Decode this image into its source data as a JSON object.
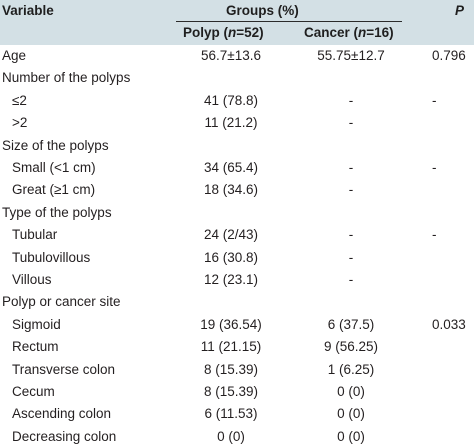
{
  "header": {
    "variable": "Variable",
    "groups": "Groups (%)",
    "polyp_prefix": "Polyp (",
    "polyp_n": "n",
    "polyp_suffix": "=52)",
    "cancer_prefix": "Cancer (",
    "cancer_n": "n",
    "cancer_suffix": "=16)",
    "p": "P"
  },
  "rows": [
    {
      "label": "Age",
      "indent": false,
      "polyp": "56.7±13.6",
      "cancer": "55.75±12.7",
      "p": "0.796"
    },
    {
      "label": "Number of the polyps",
      "indent": false,
      "polyp": "",
      "cancer": "",
      "p": ""
    },
    {
      "label": "≤2",
      "indent": true,
      "polyp": "41 (78.8)",
      "cancer": "-",
      "p": "-"
    },
    {
      "label": ">2",
      "indent": true,
      "polyp": "11 (21.2)",
      "cancer": "-",
      "p": ""
    },
    {
      "label": "Size of the polyps",
      "indent": false,
      "polyp": "",
      "cancer": "",
      "p": ""
    },
    {
      "label": "Small (<1 cm)",
      "indent": true,
      "polyp": "34 (65.4)",
      "cancer": "-",
      "p": "-"
    },
    {
      "label": "Great (≥1 cm)",
      "indent": true,
      "polyp": "18 (34.6)",
      "cancer": "-",
      "p": ""
    },
    {
      "label": "Type of the polyps",
      "indent": false,
      "polyp": "",
      "cancer": "",
      "p": ""
    },
    {
      "label": "Tubular",
      "indent": true,
      "polyp": "24 (2/43)",
      "cancer": "-",
      "p": "-"
    },
    {
      "label": "Tubulovillous",
      "indent": true,
      "polyp": "16 (30.8)",
      "cancer": "-",
      "p": ""
    },
    {
      "label": "Villous",
      "indent": true,
      "polyp": "12 (23.1)",
      "cancer": "-",
      "p": ""
    },
    {
      "label": "Polyp or cancer site",
      "indent": false,
      "polyp": "",
      "cancer": "",
      "p": ""
    },
    {
      "label": "Sigmoid",
      "indent": true,
      "polyp": "19 (36.54)",
      "cancer": "6 (37.5)",
      "p": "0.033"
    },
    {
      "label": "Rectum",
      "indent": true,
      "polyp": "11 (21.15)",
      "cancer": "9 (56.25)",
      "p": ""
    },
    {
      "label": "Transverse colon",
      "indent": true,
      "polyp": "8 (15.39)",
      "cancer": "1 (6.25)",
      "p": ""
    },
    {
      "label": "Cecum",
      "indent": true,
      "polyp": "8 (15.39)",
      "cancer": "0 (0)",
      "p": ""
    },
    {
      "label": "Ascending colon",
      "indent": true,
      "polyp": "6 (11.53)",
      "cancer": "0 (0)",
      "p": ""
    },
    {
      "label": "Decreasing colon",
      "indent": true,
      "polyp": "0 (0)",
      "cancer": "0 (0)",
      "p": ""
    }
  ]
}
